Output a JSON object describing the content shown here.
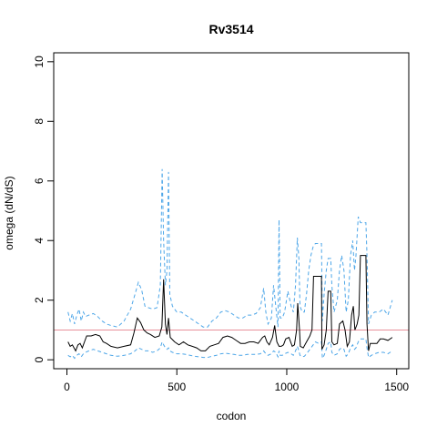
{
  "chart_data": {
    "type": "line",
    "title": "Rv3514",
    "xlabel": "codon",
    "ylabel": "omega (dN/dS)",
    "xlim": [
      -60,
      1555
    ],
    "ylim": [
      -0.3,
      10.3
    ],
    "x_ticks": [
      0,
      500,
      1000,
      1500
    ],
    "y_ticks": [
      0,
      2,
      4,
      6,
      8,
      10
    ],
    "reference_line": {
      "y": 1,
      "color": "#e8909a"
    },
    "grid": false,
    "series": [
      {
        "role": "estimate",
        "color": "#000000",
        "dash": "solid",
        "points": [
          [
            5,
            0.6
          ],
          [
            15,
            0.45
          ],
          [
            25,
            0.5
          ],
          [
            40,
            0.3
          ],
          [
            50,
            0.5
          ],
          [
            60,
            0.55
          ],
          [
            70,
            0.4
          ],
          [
            80,
            0.6
          ],
          [
            90,
            0.8
          ],
          [
            110,
            0.8
          ],
          [
            130,
            0.85
          ],
          [
            150,
            0.8
          ],
          [
            165,
            0.6
          ],
          [
            180,
            0.55
          ],
          [
            200,
            0.45
          ],
          [
            230,
            0.4
          ],
          [
            260,
            0.45
          ],
          [
            290,
            0.5
          ],
          [
            305,
            0.9
          ],
          [
            320,
            1.4
          ],
          [
            335,
            1.25
          ],
          [
            350,
            1.0
          ],
          [
            365,
            0.9
          ],
          [
            380,
            0.85
          ],
          [
            400,
            0.75
          ],
          [
            420,
            0.8
          ],
          [
            432,
            1.1
          ],
          [
            440,
            2.7
          ],
          [
            448,
            1.2
          ],
          [
            455,
            0.85
          ],
          [
            462,
            1.4
          ],
          [
            470,
            0.75
          ],
          [
            490,
            0.6
          ],
          [
            510,
            0.5
          ],
          [
            530,
            0.6
          ],
          [
            550,
            0.5
          ],
          [
            570,
            0.45
          ],
          [
            590,
            0.4
          ],
          [
            610,
            0.3
          ],
          [
            630,
            0.3
          ],
          [
            650,
            0.45
          ],
          [
            670,
            0.5
          ],
          [
            690,
            0.55
          ],
          [
            710,
            0.75
          ],
          [
            730,
            0.8
          ],
          [
            750,
            0.75
          ],
          [
            770,
            0.65
          ],
          [
            790,
            0.55
          ],
          [
            810,
            0.55
          ],
          [
            830,
            0.6
          ],
          [
            850,
            0.6
          ],
          [
            870,
            0.55
          ],
          [
            890,
            0.75
          ],
          [
            900,
            0.8
          ],
          [
            910,
            0.6
          ],
          [
            920,
            0.5
          ],
          [
            935,
            0.75
          ],
          [
            945,
            1.15
          ],
          [
            955,
            0.6
          ],
          [
            965,
            0.45
          ],
          [
            975,
            0.45
          ],
          [
            985,
            0.5
          ],
          [
            995,
            0.7
          ],
          [
            1010,
            0.75
          ],
          [
            1025,
            0.45
          ],
          [
            1035,
            0.5
          ],
          [
            1045,
            1.0
          ],
          [
            1050,
            1.9
          ],
          [
            1058,
            1.0
          ],
          [
            1062,
            0.45
          ],
          [
            1075,
            0.4
          ],
          [
            1090,
            0.6
          ],
          [
            1105,
            0.8
          ],
          [
            1115,
            1.0
          ],
          [
            1122,
            2.8
          ],
          [
            1145,
            2.8
          ],
          [
            1158,
            2.8
          ],
          [
            1160,
            0.35
          ],
          [
            1170,
            0.5
          ],
          [
            1180,
            1.0
          ],
          [
            1188,
            2.3
          ],
          [
            1200,
            2.3
          ],
          [
            1205,
            0.6
          ],
          [
            1215,
            0.5
          ],
          [
            1230,
            0.55
          ],
          [
            1240,
            1.2
          ],
          [
            1255,
            1.3
          ],
          [
            1265,
            1.0
          ],
          [
            1275,
            0.45
          ],
          [
            1285,
            0.6
          ],
          [
            1295,
            1.5
          ],
          [
            1303,
            1.8
          ],
          [
            1310,
            1.0
          ],
          [
            1320,
            1.2
          ],
          [
            1328,
            1.5
          ],
          [
            1335,
            3.5
          ],
          [
            1360,
            3.5
          ],
          [
            1365,
            1.2
          ],
          [
            1372,
            0.3
          ],
          [
            1380,
            0.55
          ],
          [
            1395,
            0.55
          ],
          [
            1410,
            0.55
          ],
          [
            1425,
            0.7
          ],
          [
            1440,
            0.7
          ],
          [
            1460,
            0.65
          ],
          [
            1480,
            0.75
          ]
        ]
      },
      {
        "role": "upper bound",
        "color": "#4da6e8",
        "dash": "dashed",
        "points": [
          [
            5,
            1.6
          ],
          [
            15,
            1.3
          ],
          [
            25,
            1.55
          ],
          [
            35,
            1.2
          ],
          [
            45,
            1.5
          ],
          [
            55,
            1.7
          ],
          [
            65,
            1.3
          ],
          [
            75,
            1.6
          ],
          [
            85,
            1.45
          ],
          [
            100,
            1.5
          ],
          [
            120,
            1.55
          ],
          [
            140,
            1.45
          ],
          [
            160,
            1.3
          ],
          [
            180,
            1.2
          ],
          [
            200,
            1.15
          ],
          [
            230,
            1.1
          ],
          [
            260,
            1.3
          ],
          [
            290,
            1.7
          ],
          [
            310,
            2.2
          ],
          [
            325,
            2.6
          ],
          [
            340,
            2.35
          ],
          [
            355,
            1.8
          ],
          [
            370,
            1.75
          ],
          [
            390,
            1.7
          ],
          [
            410,
            1.75
          ],
          [
            425,
            2.5
          ],
          [
            433,
            6.4
          ],
          [
            440,
            4.0
          ],
          [
            448,
            2.5
          ],
          [
            455,
            3.0
          ],
          [
            462,
            6.3
          ],
          [
            468,
            2.2
          ],
          [
            480,
            1.8
          ],
          [
            500,
            1.6
          ],
          [
            520,
            1.6
          ],
          [
            540,
            1.5
          ],
          [
            560,
            1.4
          ],
          [
            580,
            1.3
          ],
          [
            600,
            1.2
          ],
          [
            620,
            1.1
          ],
          [
            640,
            1.1
          ],
          [
            660,
            1.3
          ],
          [
            680,
            1.4
          ],
          [
            700,
            1.6
          ],
          [
            720,
            1.65
          ],
          [
            740,
            1.6
          ],
          [
            760,
            1.5
          ],
          [
            780,
            1.4
          ],
          [
            800,
            1.4
          ],
          [
            820,
            1.5
          ],
          [
            840,
            1.5
          ],
          [
            860,
            1.55
          ],
          [
            880,
            1.75
          ],
          [
            895,
            2.4
          ],
          [
            905,
            1.6
          ],
          [
            915,
            1.2
          ],
          [
            930,
            1.4
          ],
          [
            940,
            2.5
          ],
          [
            950,
            1.8
          ],
          [
            960,
            1.1
          ],
          [
            965,
            4.7
          ],
          [
            970,
            1.4
          ],
          [
            980,
            1.4
          ],
          [
            990,
            1.6
          ],
          [
            1005,
            2.3
          ],
          [
            1020,
            1.8
          ],
          [
            1030,
            1.6
          ],
          [
            1040,
            2.5
          ],
          [
            1048,
            4.1
          ],
          [
            1055,
            3.4
          ],
          [
            1060,
            1.8
          ],
          [
            1070,
            1.6
          ],
          [
            1080,
            1.6
          ],
          [
            1090,
            2.2
          ],
          [
            1100,
            3.0
          ],
          [
            1110,
            3.5
          ],
          [
            1120,
            3.8
          ],
          [
            1130,
            3.9
          ],
          [
            1145,
            3.9
          ],
          [
            1158,
            3.9
          ],
          [
            1162,
            1.3
          ],
          [
            1170,
            2.2
          ],
          [
            1180,
            3.0
          ],
          [
            1188,
            3.4
          ],
          [
            1200,
            3.4
          ],
          [
            1205,
            2.5
          ],
          [
            1215,
            1.6
          ],
          [
            1230,
            2.0
          ],
          [
            1240,
            3.0
          ],
          [
            1250,
            3.5
          ],
          [
            1260,
            3.0
          ],
          [
            1270,
            1.6
          ],
          [
            1280,
            2.0
          ],
          [
            1290,
            3.5
          ],
          [
            1300,
            4.0
          ],
          [
            1308,
            3.0
          ],
          [
            1315,
            3.5
          ],
          [
            1325,
            4.8
          ],
          [
            1335,
            4.6
          ],
          [
            1360,
            4.6
          ],
          [
            1365,
            3.5
          ],
          [
            1372,
            1.2
          ],
          [
            1385,
            1.5
          ],
          [
            1400,
            1.6
          ],
          [
            1420,
            1.6
          ],
          [
            1440,
            1.7
          ],
          [
            1460,
            1.5
          ],
          [
            1480,
            2.0
          ]
        ]
      },
      {
        "role": "lower bound",
        "color": "#4da6e8",
        "dash": "dashed",
        "points": [
          [
            5,
            0.15
          ],
          [
            15,
            0.1
          ],
          [
            25,
            0.15
          ],
          [
            35,
            0.05
          ],
          [
            45,
            0.15
          ],
          [
            55,
            0.2
          ],
          [
            65,
            0.1
          ],
          [
            75,
            0.2
          ],
          [
            85,
            0.25
          ],
          [
            100,
            0.3
          ],
          [
            120,
            0.35
          ],
          [
            140,
            0.3
          ],
          [
            160,
            0.25
          ],
          [
            180,
            0.2
          ],
          [
            200,
            0.15
          ],
          [
            230,
            0.12
          ],
          [
            260,
            0.15
          ],
          [
            290,
            0.2
          ],
          [
            310,
            0.3
          ],
          [
            325,
            0.4
          ],
          [
            340,
            0.35
          ],
          [
            355,
            0.3
          ],
          [
            370,
            0.3
          ],
          [
            390,
            0.25
          ],
          [
            410,
            0.3
          ],
          [
            425,
            0.4
          ],
          [
            433,
            0.6
          ],
          [
            440,
            0.5
          ],
          [
            448,
            0.4
          ],
          [
            455,
            0.35
          ],
          [
            462,
            0.4
          ],
          [
            468,
            0.3
          ],
          [
            480,
            0.25
          ],
          [
            500,
            0.2
          ],
          [
            520,
            0.2
          ],
          [
            540,
            0.18
          ],
          [
            560,
            0.15
          ],
          [
            580,
            0.12
          ],
          [
            600,
            0.1
          ],
          [
            620,
            0.08
          ],
          [
            640,
            0.08
          ],
          [
            660,
            0.12
          ],
          [
            680,
            0.15
          ],
          [
            700,
            0.2
          ],
          [
            720,
            0.22
          ],
          [
            740,
            0.2
          ],
          [
            760,
            0.18
          ],
          [
            780,
            0.15
          ],
          [
            800,
            0.15
          ],
          [
            820,
            0.18
          ],
          [
            840,
            0.18
          ],
          [
            860,
            0.18
          ],
          [
            880,
            0.2
          ],
          [
            895,
            0.3
          ],
          [
            905,
            0.2
          ],
          [
            915,
            0.15
          ],
          [
            930,
            0.2
          ],
          [
            940,
            0.3
          ],
          [
            950,
            0.25
          ],
          [
            960,
            0.1
          ],
          [
            965,
            0.3
          ],
          [
            970,
            0.15
          ],
          [
            980,
            0.15
          ],
          [
            990,
            0.2
          ],
          [
            1005,
            0.25
          ],
          [
            1020,
            0.2
          ],
          [
            1030,
            0.15
          ],
          [
            1040,
            0.3
          ],
          [
            1048,
            0.45
          ],
          [
            1055,
            0.3
          ],
          [
            1060,
            0.15
          ],
          [
            1070,
            0.1
          ],
          [
            1080,
            0.12
          ],
          [
            1090,
            0.2
          ],
          [
            1100,
            0.3
          ],
          [
            1110,
            0.4
          ],
          [
            1120,
            0.5
          ],
          [
            1130,
            0.6
          ],
          [
            1145,
            0.55
          ],
          [
            1158,
            0.6
          ],
          [
            1162,
            0.05
          ],
          [
            1170,
            0.15
          ],
          [
            1180,
            0.35
          ],
          [
            1188,
            0.55
          ],
          [
            1200,
            0.6
          ],
          [
            1205,
            0.25
          ],
          [
            1215,
            0.15
          ],
          [
            1230,
            0.2
          ],
          [
            1240,
            0.35
          ],
          [
            1250,
            0.4
          ],
          [
            1260,
            0.35
          ],
          [
            1270,
            0.12
          ],
          [
            1280,
            0.2
          ],
          [
            1290,
            0.4
          ],
          [
            1300,
            0.5
          ],
          [
            1308,
            0.35
          ],
          [
            1315,
            0.4
          ],
          [
            1325,
            0.6
          ],
          [
            1335,
            0.7
          ],
          [
            1360,
            0.7
          ],
          [
            1365,
            0.4
          ],
          [
            1372,
            0.08
          ],
          [
            1385,
            0.15
          ],
          [
            1400,
            0.2
          ],
          [
            1420,
            0.25
          ],
          [
            1440,
            0.25
          ],
          [
            1460,
            0.2
          ],
          [
            1480,
            0.3
          ]
        ]
      }
    ]
  }
}
